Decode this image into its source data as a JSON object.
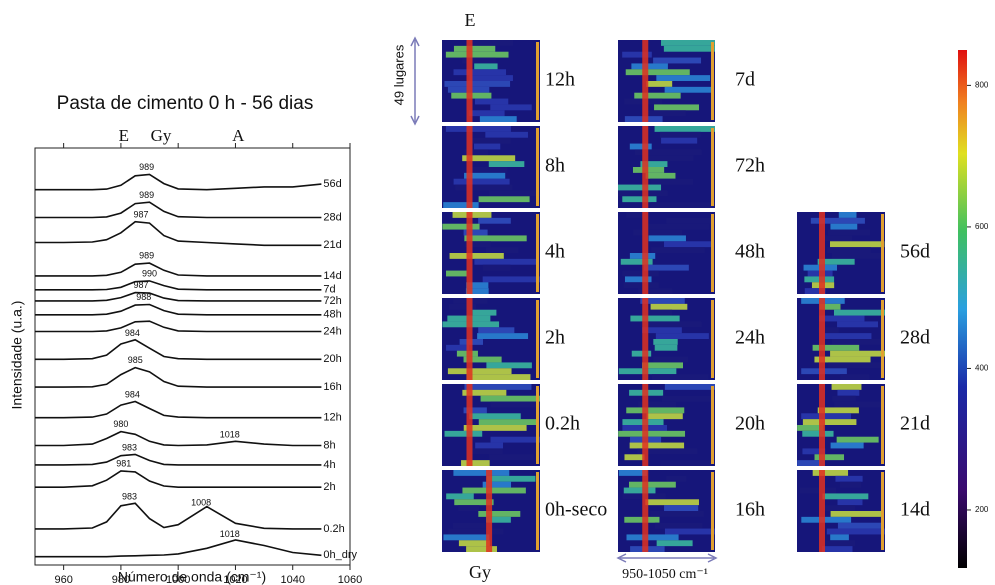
{
  "chart_data": {
    "type": "line",
    "title": "Pasta de cimento 0 h - 56 dias",
    "band_labels": [
      "E",
      "Gy",
      "A"
    ],
    "x_label": "Número de onda (cm⁻¹)",
    "y_label": "Intensidade (u.a.)",
    "x": [
      950,
      960,
      970,
      975,
      980,
      985,
      990,
      995,
      1000,
      1010,
      1020,
      1030,
      1040,
      1050
    ],
    "xlim": [
      950,
      1060
    ],
    "xticks": [
      960,
      980,
      1000,
      1020,
      1040,
      1060
    ],
    "ylim": [
      2,
      17
    ],
    "color": "#111111",
    "series": [
      {
        "name": "56d",
        "peaks": [
          989
        ],
        "values": [
          15.5,
          15.5,
          15.5,
          15.52,
          15.66,
          16.0,
          16.05,
          15.72,
          15.53,
          15.5,
          15.55,
          15.6,
          15.6,
          15.7
        ]
      },
      {
        "name": "28d",
        "peaks": [
          989
        ],
        "values": [
          14.5,
          14.5,
          14.5,
          14.52,
          14.66,
          15.0,
          15.05,
          14.72,
          14.53,
          14.5,
          14.5,
          14.5,
          14.5,
          14.5
        ]
      },
      {
        "name": "21d",
        "peaks": [
          987
        ],
        "values": [
          13.6,
          13.6,
          13.62,
          13.7,
          13.95,
          14.35,
          14.3,
          13.85,
          13.65,
          13.6,
          13.55,
          13.5,
          13.5,
          13.5
        ]
      },
      {
        "name": "14d",
        "peaks": [
          989
        ],
        "values": [
          12.4,
          12.4,
          12.4,
          12.42,
          12.53,
          12.82,
          12.86,
          12.6,
          12.43,
          12.4,
          12.4,
          12.4,
          12.4,
          12.4
        ]
      },
      {
        "name": "7d",
        "peaks": [
          990
        ],
        "values": [
          11.9,
          11.9,
          11.9,
          11.91,
          11.99,
          12.19,
          12.22,
          12.05,
          11.92,
          11.9,
          11.9,
          11.9,
          11.9,
          11.9
        ]
      },
      {
        "name": "72h",
        "peaks": [
          987
        ],
        "values": [
          11.5,
          11.5,
          11.5,
          11.52,
          11.62,
          11.8,
          11.78,
          11.6,
          11.51,
          11.5,
          11.5,
          11.5,
          11.5,
          11.5
        ]
      },
      {
        "name": "48h",
        "peaks": [
          988
        ],
        "values": [
          11.0,
          11.0,
          11.0,
          11.02,
          11.13,
          11.35,
          11.37,
          11.15,
          11.02,
          11.0,
          11.0,
          11.0,
          11.0,
          11.0
        ]
      },
      {
        "name": "24h",
        "peaks": [],
        "values": [
          10.4,
          10.4,
          10.4,
          10.42,
          10.53,
          10.75,
          10.77,
          10.55,
          10.42,
          10.4,
          10.4,
          10.4,
          10.4,
          10.4
        ]
      },
      {
        "name": "20h",
        "peaks": [
          984
        ],
        "values": [
          9.4,
          9.4,
          9.42,
          9.55,
          9.95,
          10.1,
          9.8,
          9.5,
          9.42,
          9.4,
          9.4,
          9.4,
          9.4,
          9.4
        ]
      },
      {
        "name": "16h",
        "peaks": [
          985
        ],
        "values": [
          8.4,
          8.4,
          8.41,
          8.5,
          8.85,
          9.1,
          8.95,
          8.6,
          8.43,
          8.4,
          8.4,
          8.4,
          8.4,
          8.4
        ]
      },
      {
        "name": "12h",
        "peaks": [
          984
        ],
        "values": [
          7.3,
          7.3,
          7.32,
          7.43,
          7.75,
          7.88,
          7.63,
          7.38,
          7.32,
          7.3,
          7.3,
          7.3,
          7.3,
          7.3
        ]
      },
      {
        "name": "8h",
        "peaks": [
          980,
          1018
        ],
        "values": [
          6.3,
          6.3,
          6.35,
          6.55,
          6.8,
          6.7,
          6.45,
          6.32,
          6.3,
          6.32,
          6.45,
          6.35,
          6.3,
          6.3
        ]
      },
      {
        "name": "4h",
        "peaks": [
          983
        ],
        "values": [
          5.6,
          5.6,
          5.62,
          5.7,
          5.93,
          5.98,
          5.76,
          5.62,
          5.6,
          5.6,
          5.6,
          5.6,
          5.6,
          5.6
        ]
      },
      {
        "name": "2h",
        "peaks": [
          981
        ],
        "values": [
          4.8,
          4.8,
          4.85,
          5.05,
          5.38,
          5.35,
          5.02,
          4.84,
          4.8,
          4.8,
          4.8,
          4.8,
          4.8,
          4.8
        ]
      },
      {
        "name": "0.2h",
        "peaks": [
          983,
          1008
        ],
        "values": [
          3.3,
          3.3,
          3.33,
          3.55,
          4.13,
          4.22,
          3.67,
          3.35,
          3.45,
          4.1,
          3.5,
          3.32,
          3.3,
          3.3
        ]
      },
      {
        "name": "0h_dry",
        "peaks": [
          1018
        ],
        "values": [
          2.3,
          2.3,
          2.3,
          2.3,
          2.32,
          2.33,
          2.35,
          2.36,
          2.4,
          2.6,
          2.9,
          2.7,
          2.45,
          2.35
        ]
      }
    ]
  },
  "heatmaps": {
    "top_label": "E",
    "side_label": "49 lugares",
    "bottom_label": "Gy",
    "range_label": "950-1050 cm⁻¹",
    "columns": [
      [
        "12h",
        "8h",
        "4h",
        "2h",
        "0.2h",
        "0h-seco"
      ],
      [
        "7d",
        "72h",
        "48h",
        "24h",
        "20h",
        "16h"
      ],
      [
        "56d",
        "28d",
        "21d",
        "14d"
      ]
    ],
    "colorbar": {
      "lim": [
        118,
        850
      ],
      "ticks": [
        200,
        400,
        600,
        800
      ]
    }
  }
}
